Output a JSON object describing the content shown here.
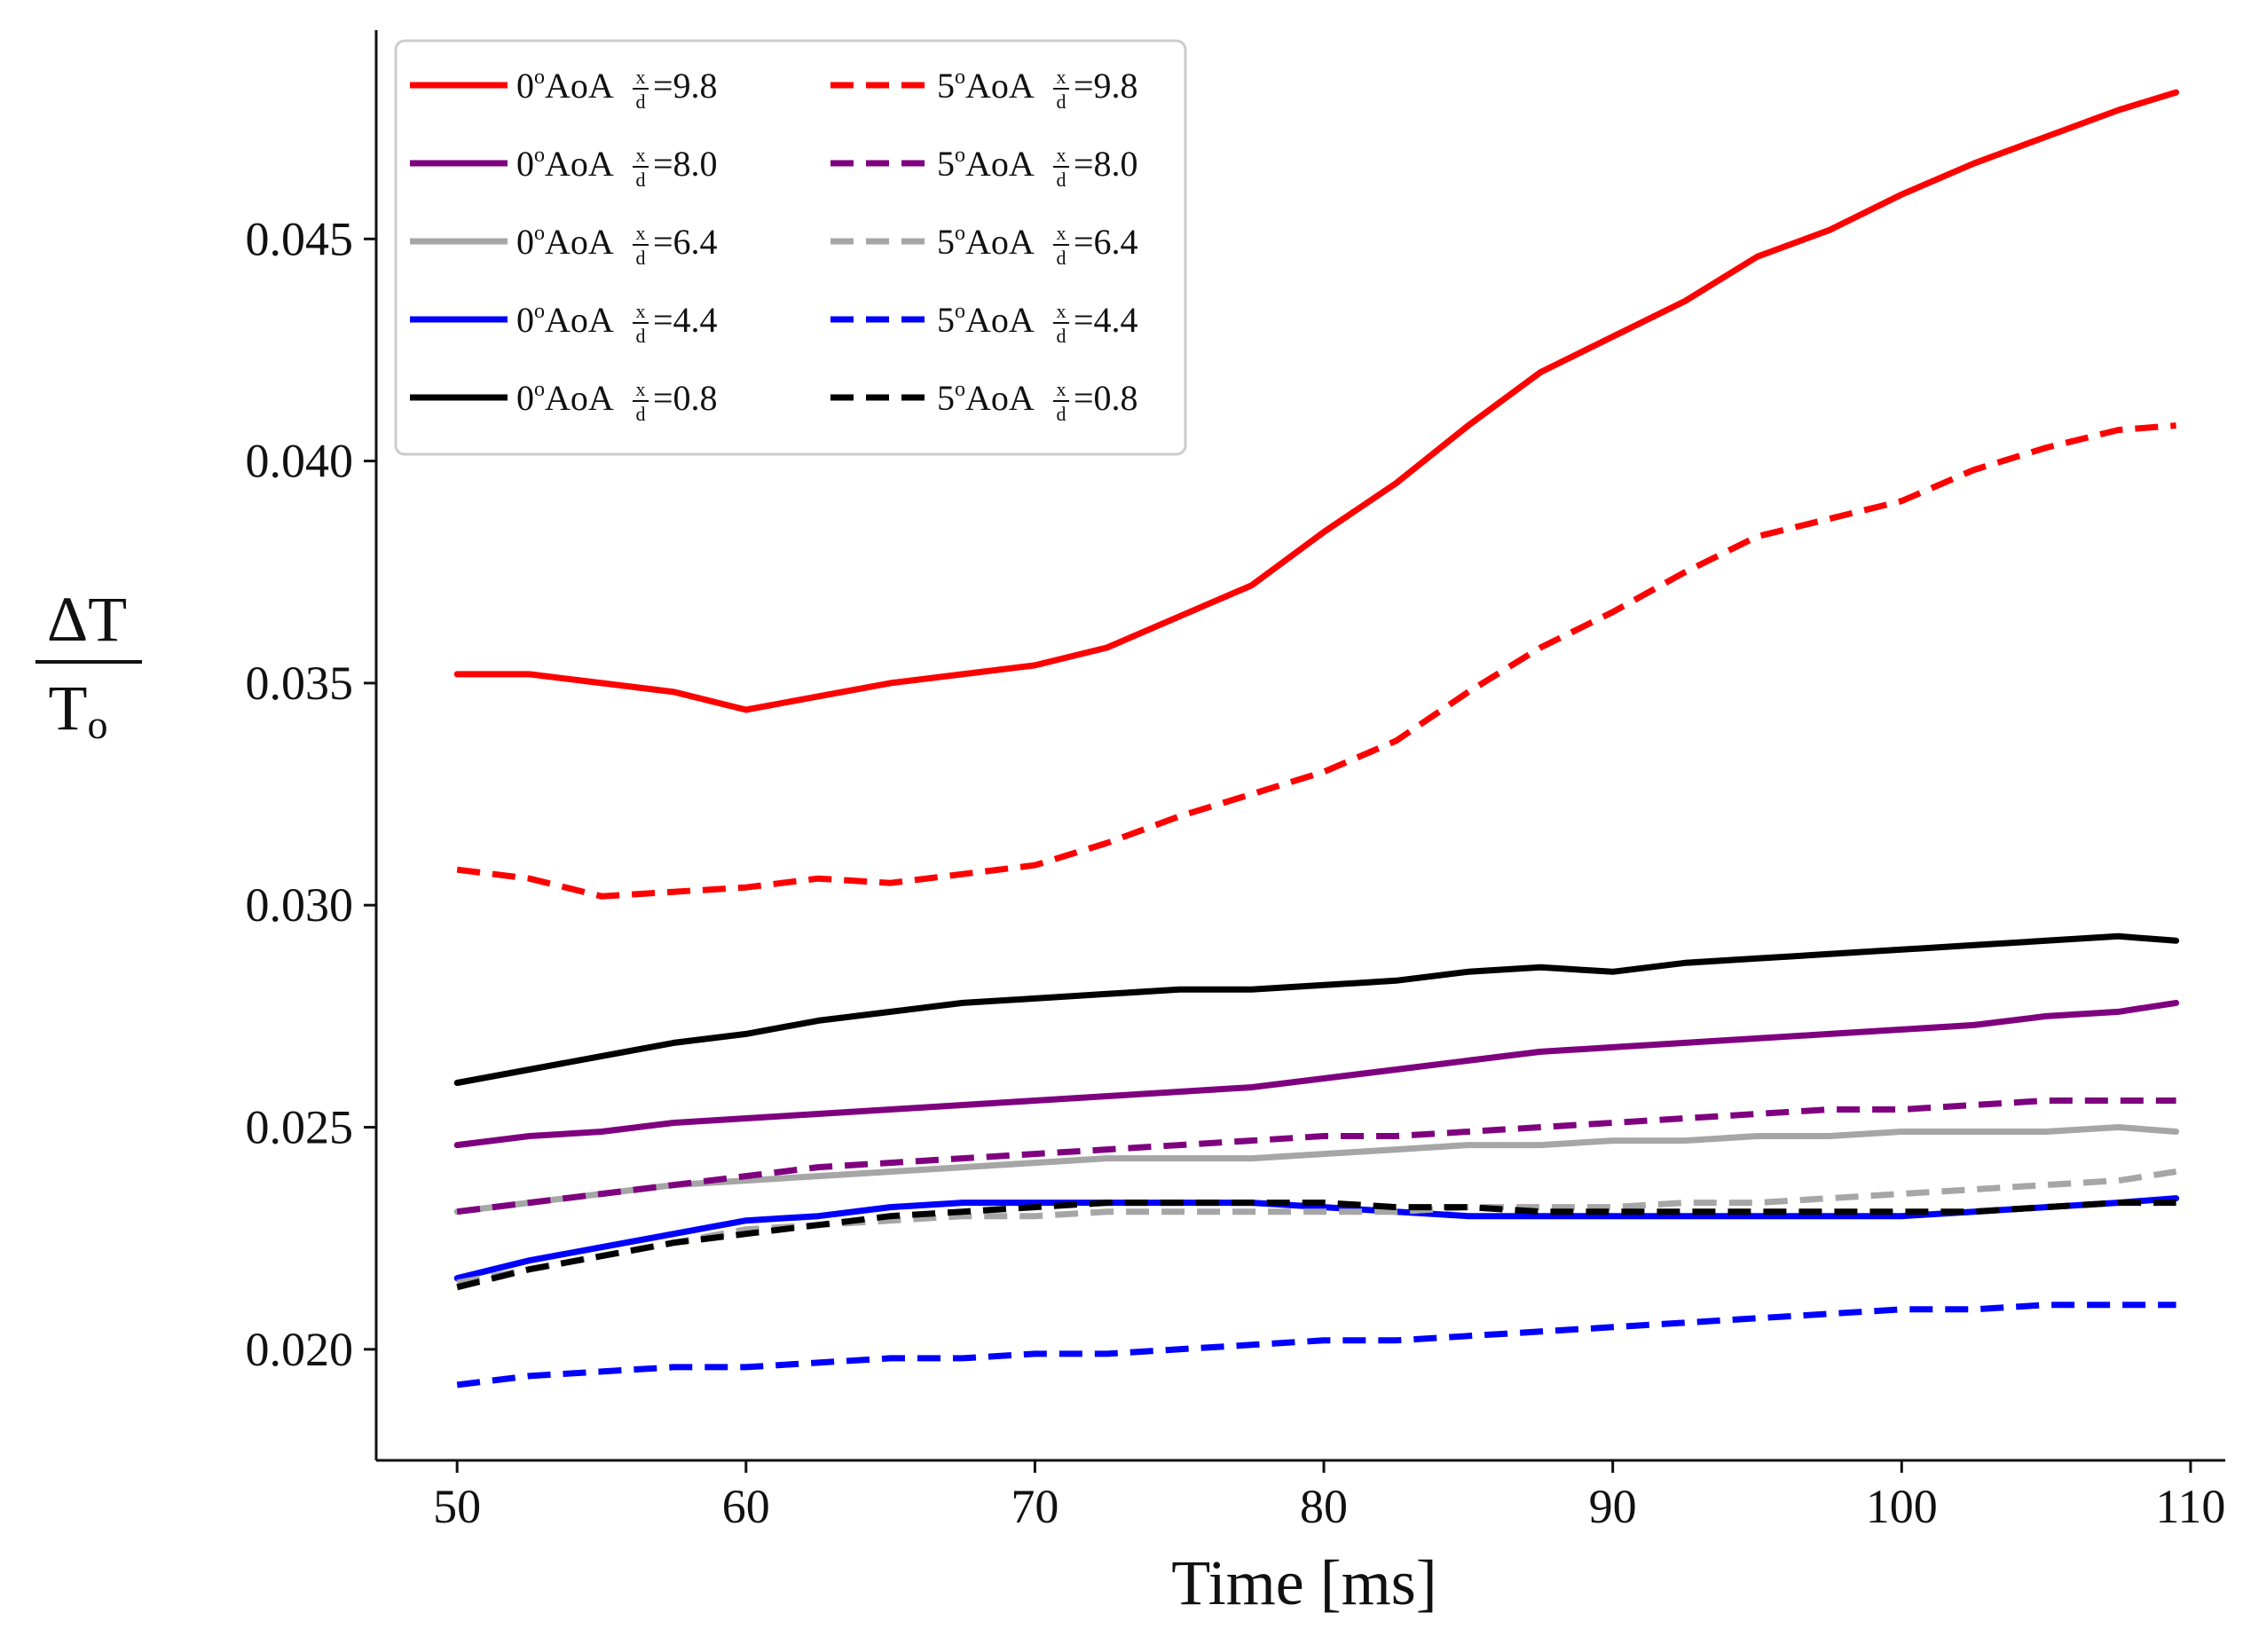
{
  "chart_data": {
    "type": "line",
    "title": "",
    "xlabel": "Time [ms]",
    "ylabel": {
      "numerator": "ΔT",
      "denominator_main": "T",
      "denominator_sub": "o"
    },
    "xlim": [
      47.2,
      111.2
    ],
    "ylim": [
      0.0175,
      0.0497
    ],
    "xticks": [
      50,
      60,
      70,
      80,
      90,
      100,
      110
    ],
    "xtick_labels": [
      "50",
      "60",
      "70",
      "80",
      "90",
      "100",
      "110"
    ],
    "yticks": [
      0.02,
      0.025,
      0.03,
      0.035,
      0.04,
      0.045
    ],
    "ytick_labels": [
      "0.020",
      "0.025",
      "0.030",
      "0.035",
      "0.040",
      "0.045"
    ],
    "legend_position": "top-left",
    "legend_columns": 2,
    "series": [
      {
        "name": "0°AoA x/d=9.8",
        "color": "#ff0000",
        "dash": "solid",
        "angle": "0",
        "xd": "9.8",
        "x": [
          50,
          52.5,
          55,
          57.5,
          60,
          62.5,
          65,
          67.5,
          70,
          72.5,
          75,
          77.5,
          80,
          82.5,
          85,
          87.5,
          90,
          92.5,
          95,
          97.5,
          100,
          102.5,
          105,
          107.5,
          109.5
        ],
        "y": [
          0.0352,
          0.0352,
          0.035,
          0.0348,
          0.0344,
          0.0347,
          0.035,
          0.0352,
          0.0354,
          0.0358,
          0.0365,
          0.0372,
          0.0384,
          0.0395,
          0.0408,
          0.042,
          0.0428,
          0.0436,
          0.0446,
          0.0452,
          0.046,
          0.0467,
          0.0473,
          0.0479,
          0.0483
        ]
      },
      {
        "name": "0°AoA x/d=8.0",
        "color": "#7f007f",
        "dash": "solid",
        "angle": "0",
        "xd": "8.0",
        "x": [
          50,
          52.5,
          55,
          57.5,
          60,
          62.5,
          65,
          67.5,
          70,
          72.5,
          75,
          77.5,
          80,
          82.5,
          85,
          87.5,
          90,
          92.5,
          95,
          97.5,
          100,
          102.5,
          105,
          107.5,
          109.5
        ],
        "y": [
          0.0246,
          0.0248,
          0.0249,
          0.0251,
          0.0252,
          0.0253,
          0.0254,
          0.0255,
          0.0256,
          0.0257,
          0.0258,
          0.0259,
          0.0261,
          0.0263,
          0.0265,
          0.0267,
          0.0268,
          0.0269,
          0.027,
          0.0271,
          0.0272,
          0.0273,
          0.0275,
          0.0276,
          0.0278
        ]
      },
      {
        "name": "0°AoA x/d=6.4",
        "color": "#a6a6a6",
        "dash": "solid",
        "angle": "0",
        "xd": "6.4",
        "x": [
          50,
          52.5,
          55,
          57.5,
          60,
          62.5,
          65,
          67.5,
          70,
          72.5,
          75,
          77.5,
          80,
          82.5,
          85,
          87.5,
          90,
          92.5,
          95,
          97.5,
          100,
          102.5,
          105,
          107.5,
          109.5
        ],
        "y": [
          0.0231,
          0.0233,
          0.0235,
          0.0237,
          0.0238,
          0.0239,
          0.024,
          0.0241,
          0.0242,
          0.0243,
          0.0243,
          0.0243,
          0.0244,
          0.0245,
          0.0246,
          0.0246,
          0.0247,
          0.0247,
          0.0248,
          0.0248,
          0.0249,
          0.0249,
          0.0249,
          0.025,
          0.0249
        ]
      },
      {
        "name": "0°AoA x/d=4.4",
        "color": "#0000ff",
        "dash": "solid",
        "angle": "0",
        "xd": "4.4",
        "x": [
          50,
          52.5,
          55,
          57.5,
          60,
          62.5,
          65,
          67.5,
          70,
          72.5,
          75,
          77.5,
          80,
          82.5,
          85,
          87.5,
          90,
          92.5,
          95,
          97.5,
          100,
          102.5,
          105,
          107.5,
          109.5
        ],
        "y": [
          0.0216,
          0.022,
          0.0223,
          0.0226,
          0.0229,
          0.023,
          0.0232,
          0.0233,
          0.0233,
          0.0233,
          0.0233,
          0.0233,
          0.0232,
          0.0231,
          0.023,
          0.023,
          0.023,
          0.023,
          0.023,
          0.023,
          0.023,
          0.0231,
          0.0232,
          0.0233,
          0.0234
        ]
      },
      {
        "name": "0°AoA x/d=0.8",
        "color": "#000000",
        "dash": "solid",
        "angle": "0",
        "xd": "0.8",
        "x": [
          50,
          52.5,
          55,
          57.5,
          60,
          62.5,
          65,
          67.5,
          70,
          72.5,
          75,
          77.5,
          80,
          82.5,
          85,
          87.5,
          90,
          92.5,
          95,
          97.5,
          100,
          102.5,
          105,
          107.5,
          109.5
        ],
        "y": [
          0.026,
          0.0263,
          0.0266,
          0.0269,
          0.0271,
          0.0274,
          0.0276,
          0.0278,
          0.0279,
          0.028,
          0.0281,
          0.0281,
          0.0282,
          0.0283,
          0.0285,
          0.0286,
          0.0285,
          0.0287,
          0.0288,
          0.0289,
          0.029,
          0.0291,
          0.0292,
          0.0293,
          0.0292
        ]
      },
      {
        "name": "5°AoA x/d=9.8",
        "color": "#ff0000",
        "dash": "dashed",
        "angle": "5",
        "xd": "9.8",
        "x": [
          50,
          52.5,
          55,
          57.5,
          60,
          62.5,
          65,
          67.5,
          70,
          72.5,
          75,
          77.5,
          80,
          82.5,
          85,
          87.5,
          90,
          92.5,
          95,
          97.5,
          100,
          102.5,
          105,
          107.5,
          109.5
        ],
        "y": [
          0.0308,
          0.0306,
          0.0302,
          0.0303,
          0.0304,
          0.0306,
          0.0305,
          0.0307,
          0.0309,
          0.0314,
          0.032,
          0.0325,
          0.033,
          0.0337,
          0.0348,
          0.0358,
          0.0366,
          0.0375,
          0.0383,
          0.0387,
          0.0391,
          0.0398,
          0.0403,
          0.0407,
          0.0408
        ]
      },
      {
        "name": "5°AoA x/d=8.0",
        "color": "#7f007f",
        "dash": "dashed",
        "angle": "5",
        "xd": "8.0",
        "x": [
          50,
          52.5,
          55,
          57.5,
          60,
          62.5,
          65,
          67.5,
          70,
          72.5,
          75,
          77.5,
          80,
          82.5,
          85,
          87.5,
          90,
          92.5,
          95,
          97.5,
          100,
          102.5,
          105,
          107.5,
          109.5
        ],
        "y": [
          0.0231,
          0.0233,
          0.0235,
          0.0237,
          0.0239,
          0.0241,
          0.0242,
          0.0243,
          0.0244,
          0.0245,
          0.0246,
          0.0247,
          0.0248,
          0.0248,
          0.0249,
          0.025,
          0.0251,
          0.0252,
          0.0253,
          0.0254,
          0.0254,
          0.0255,
          0.0256,
          0.0256,
          0.0256
        ]
      },
      {
        "name": "5°AoA x/d=6.4",
        "color": "#a6a6a6",
        "dash": "dashed",
        "angle": "5",
        "xd": "6.4",
        "x": [
          50,
          52.5,
          55,
          57.5,
          60,
          62.5,
          65,
          67.5,
          70,
          72.5,
          75,
          77.5,
          80,
          82.5,
          85,
          87.5,
          90,
          92.5,
          95,
          97.5,
          100,
          102.5,
          105,
          107.5,
          109.5
        ],
        "y": [
          0.0215,
          0.0218,
          0.0221,
          0.0224,
          0.0227,
          0.0228,
          0.0229,
          0.023,
          0.023,
          0.0231,
          0.0231,
          0.0231,
          0.0231,
          0.0231,
          0.0232,
          0.0232,
          0.0232,
          0.0233,
          0.0233,
          0.0234,
          0.0235,
          0.0236,
          0.0237,
          0.0238,
          0.024
        ]
      },
      {
        "name": "5°AoA x/d=4.4",
        "color": "#0000ff",
        "dash": "dashed",
        "angle": "5",
        "xd": "4.4",
        "x": [
          50,
          52.5,
          55,
          57.5,
          60,
          62.5,
          65,
          67.5,
          70,
          72.5,
          75,
          77.5,
          80,
          82.5,
          85,
          87.5,
          90,
          92.5,
          95,
          97.5,
          100,
          102.5,
          105,
          107.5,
          109.5
        ],
        "y": [
          0.0192,
          0.0194,
          0.0195,
          0.0196,
          0.0196,
          0.0197,
          0.0198,
          0.0198,
          0.0199,
          0.0199,
          0.02,
          0.0201,
          0.0202,
          0.0202,
          0.0203,
          0.0204,
          0.0205,
          0.0206,
          0.0207,
          0.0208,
          0.0209,
          0.0209,
          0.021,
          0.021,
          0.021
        ]
      },
      {
        "name": "5°AoA x/d=0.8",
        "color": "#000000",
        "dash": "dashed",
        "angle": "5",
        "xd": "0.8",
        "x": [
          50,
          52.5,
          55,
          57.5,
          60,
          62.5,
          65,
          67.5,
          70,
          72.5,
          75,
          77.5,
          80,
          82.5,
          85,
          87.5,
          90,
          92.5,
          95,
          97.5,
          100,
          102.5,
          105,
          107.5,
          109.5
        ],
        "y": [
          0.0214,
          0.0218,
          0.0221,
          0.0224,
          0.0226,
          0.0228,
          0.023,
          0.0231,
          0.0232,
          0.0233,
          0.0233,
          0.0233,
          0.0233,
          0.0232,
          0.0232,
          0.0231,
          0.0231,
          0.0231,
          0.0231,
          0.0231,
          0.0231,
          0.0231,
          0.0232,
          0.0233,
          0.0233
        ]
      }
    ]
  },
  "legend_text": {
    "aoa_suffix": "AoA",
    "degree_mark": "o",
    "frac_num": "x",
    "frac_den": "d",
    "equals": "="
  }
}
